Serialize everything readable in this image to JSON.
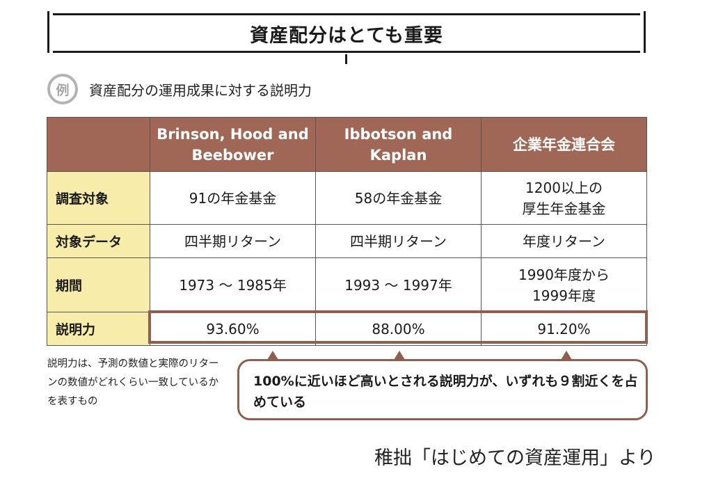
{
  "title": "資産配分はとても重要",
  "example": {
    "badge": "例",
    "subtitle": "資産配分の運用成果に対する説明力"
  },
  "table": {
    "columns": [
      "",
      "Brinson, Hood and\nBeebower",
      "Ibbotson and\nKaplan",
      "企業年金連合会"
    ],
    "rows": [
      {
        "label": "調査対象",
        "cells": [
          "91の年金基金",
          "58の年金基金",
          "1200以上の\n厚生年金基金"
        ]
      },
      {
        "label": "対象データ",
        "cells": [
          "四半期リターン",
          "四半期リターン",
          "年度リターン"
        ]
      },
      {
        "label": "期間",
        "cells": [
          "1973 ～ 1985年",
          "1993 ～ 1997年",
          "1990年度から\n1999年度"
        ]
      },
      {
        "label": "説明力",
        "cells": [
          "93.60%",
          "88.00%",
          "91.20%"
        ]
      }
    ]
  },
  "note": "説明力は、予測の数値と実際のリターンの数値がどれくらい一致しているかを表すもの",
  "callout": "100%に近いほど高いとされる説明力が、いずれも９割近くを占めている",
  "source": "稚拙「はじめての資産運用」より",
  "colors": {
    "header_bg": "#a06756",
    "row_header_bg": "#f7ecaa",
    "accent_border": "#8e5e4f"
  }
}
